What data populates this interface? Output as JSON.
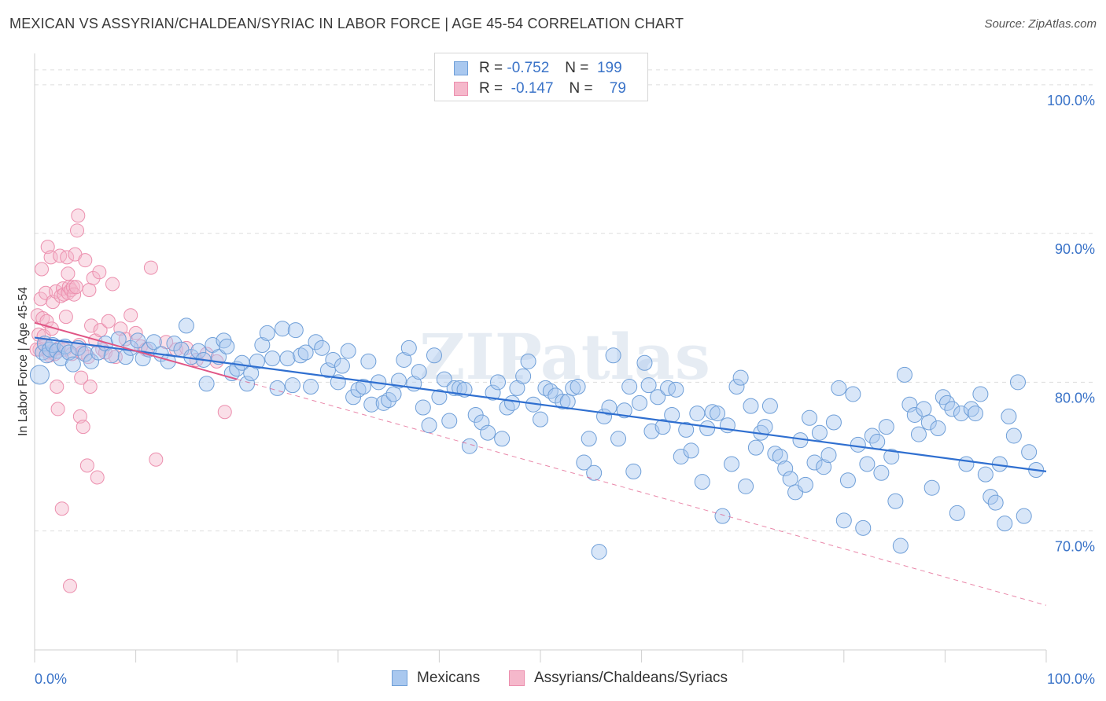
{
  "title": "MEXICAN VS ASSYRIAN/CHALDEAN/SYRIAC IN LABOR FORCE | AGE 45-54 CORRELATION CHART",
  "source": "Source: ZipAtlas.com",
  "watermark": "ZIPatlas",
  "colors": {
    "blue_fill": "#a9c8ef",
    "blue_stroke": "#6f9fd8",
    "blue_line": "#2f6fd0",
    "pink_fill": "#f5b8cb",
    "pink_stroke": "#ec8fae",
    "pink_line": "#e05585",
    "axis_text": "#3a73c8",
    "grid": "#dddddd"
  },
  "legend": {
    "row1": {
      "r_label": "R =",
      "r_value": "-0.752",
      "n_label": "N =",
      "n_value": "199"
    },
    "row2": {
      "r_label": "R =",
      "r_value": "-0.147",
      "n_label": "N =",
      "n_value": "79"
    }
  },
  "chart_data": {
    "type": "scatter",
    "title": "MEXICAN VS ASSYRIAN/CHALDEAN/SYRIAC IN LABOR FORCE | AGE 45-54 CORRELATION CHART",
    "xlabel": "",
    "ylabel": "In Labor Force | Age 45-54",
    "xlim": [
      0,
      100
    ],
    "ylim": [
      62,
      102
    ],
    "x_tick_labels": [
      "0.0%",
      "100.0%"
    ],
    "y_ticks": [
      70,
      80,
      90,
      100
    ],
    "y_tick_labels": [
      "70.0%",
      "80.0%",
      "90.0%",
      "100.0%"
    ],
    "grid": true,
    "legend_position": "top-center",
    "series": [
      {
        "name": "Mexicans",
        "color": "#6f9fd8",
        "r": -0.752,
        "n": 199,
        "trend": {
          "x": [
            0,
            100
          ],
          "y": [
            83.0,
            74.0
          ]
        },
        "points": [
          [
            0.5,
            80.5
          ],
          [
            0.8,
            82.0
          ],
          [
            1.0,
            82.6
          ],
          [
            1.2,
            81.8
          ],
          [
            1.5,
            82.2
          ],
          [
            1.8,
            82.5
          ],
          [
            2.2,
            82.1
          ],
          [
            2.6,
            81.6
          ],
          [
            3.0,
            82.4
          ],
          [
            3.4,
            82.0
          ],
          [
            3.8,
            81.2
          ],
          [
            4.3,
            82.3
          ],
          [
            5.0,
            81.9
          ],
          [
            5.6,
            81.4
          ],
          [
            6.3,
            82.0
          ],
          [
            7.0,
            82.6
          ],
          [
            7.6,
            81.8
          ],
          [
            8.3,
            82.9
          ],
          [
            9.0,
            81.7
          ],
          [
            9.5,
            82.3
          ],
          [
            10.2,
            82.8
          ],
          [
            10.7,
            81.6
          ],
          [
            11.3,
            82.2
          ],
          [
            11.8,
            82.7
          ],
          [
            12.5,
            81.9
          ],
          [
            13.2,
            81.4
          ],
          [
            13.8,
            82.6
          ],
          [
            14.5,
            82.2
          ],
          [
            15.0,
            83.8
          ],
          [
            15.5,
            81.7
          ],
          [
            16.2,
            82.1
          ],
          [
            16.7,
            81.5
          ],
          [
            17.0,
            79.9
          ],
          [
            17.6,
            82.5
          ],
          [
            18.2,
            81.7
          ],
          [
            18.7,
            82.8
          ],
          [
            19.0,
            82.4
          ],
          [
            19.5,
            80.6
          ],
          [
            20.0,
            80.9
          ],
          [
            20.5,
            81.3
          ],
          [
            21.0,
            79.9
          ],
          [
            21.4,
            80.6
          ],
          [
            22.0,
            81.4
          ],
          [
            22.5,
            82.5
          ],
          [
            23.0,
            83.3
          ],
          [
            23.5,
            81.6
          ],
          [
            24.0,
            79.6
          ],
          [
            24.5,
            83.6
          ],
          [
            25.0,
            81.6
          ],
          [
            25.5,
            79.8
          ],
          [
            25.8,
            83.5
          ],
          [
            26.3,
            81.8
          ],
          [
            26.8,
            82.0
          ],
          [
            27.3,
            79.7
          ],
          [
            27.8,
            82.7
          ],
          [
            28.4,
            82.3
          ],
          [
            29.0,
            80.8
          ],
          [
            29.5,
            81.5
          ],
          [
            30.0,
            80.0
          ],
          [
            30.4,
            81.1
          ],
          [
            31.0,
            82.1
          ],
          [
            31.5,
            79.0
          ],
          [
            32.0,
            79.5
          ],
          [
            32.5,
            79.7
          ],
          [
            33.0,
            81.4
          ],
          [
            33.3,
            78.5
          ],
          [
            34.0,
            80.0
          ],
          [
            34.5,
            78.6
          ],
          [
            35.0,
            78.8
          ],
          [
            35.5,
            79.2
          ],
          [
            36.0,
            80.1
          ],
          [
            36.5,
            81.5
          ],
          [
            37.0,
            82.3
          ],
          [
            37.5,
            79.9
          ],
          [
            38.0,
            80.7
          ],
          [
            38.4,
            78.3
          ],
          [
            39.0,
            77.1
          ],
          [
            39.5,
            81.8
          ],
          [
            40.0,
            79.0
          ],
          [
            40.5,
            80.2
          ],
          [
            41.0,
            77.4
          ],
          [
            41.5,
            79.6
          ],
          [
            42.0,
            79.6
          ],
          [
            42.5,
            79.5
          ],
          [
            43.0,
            75.7
          ],
          [
            43.6,
            77.8
          ],
          [
            44.2,
            77.3
          ],
          [
            44.8,
            76.6
          ],
          [
            45.3,
            79.3
          ],
          [
            45.8,
            80.0
          ],
          [
            46.2,
            76.2
          ],
          [
            46.7,
            78.3
          ],
          [
            47.2,
            78.6
          ],
          [
            47.7,
            79.6
          ],
          [
            48.3,
            80.4
          ],
          [
            48.8,
            81.4
          ],
          [
            49.3,
            78.5
          ],
          [
            50.0,
            77.5
          ],
          [
            50.5,
            79.6
          ],
          [
            51.0,
            79.4
          ],
          [
            51.5,
            79.1
          ],
          [
            52.2,
            78.7
          ],
          [
            52.7,
            78.7
          ],
          [
            53.2,
            79.6
          ],
          [
            53.7,
            79.7
          ],
          [
            54.3,
            74.6
          ],
          [
            54.8,
            76.2
          ],
          [
            55.3,
            73.9
          ],
          [
            55.8,
            68.6
          ],
          [
            56.3,
            77.7
          ],
          [
            56.8,
            78.3
          ],
          [
            57.2,
            81.8
          ],
          [
            57.7,
            76.2
          ],
          [
            58.3,
            78.1
          ],
          [
            58.8,
            79.7
          ],
          [
            59.2,
            74.0
          ],
          [
            59.8,
            78.6
          ],
          [
            60.3,
            81.3
          ],
          [
            60.7,
            79.8
          ],
          [
            61.0,
            76.7
          ],
          [
            61.6,
            79.0
          ],
          [
            62.1,
            77.0
          ],
          [
            62.6,
            79.6
          ],
          [
            63.0,
            77.8
          ],
          [
            63.4,
            79.5
          ],
          [
            63.9,
            75.0
          ],
          [
            64.4,
            76.8
          ],
          [
            64.9,
            75.4
          ],
          [
            65.5,
            77.9
          ],
          [
            66.0,
            73.3
          ],
          [
            66.5,
            76.9
          ],
          [
            67.0,
            78.0
          ],
          [
            67.5,
            77.9
          ],
          [
            68.0,
            71.0
          ],
          [
            68.5,
            77.1
          ],
          [
            68.9,
            74.5
          ],
          [
            69.4,
            79.7
          ],
          [
            69.8,
            80.3
          ],
          [
            70.3,
            73.0
          ],
          [
            70.8,
            78.4
          ],
          [
            71.3,
            75.6
          ],
          [
            71.8,
            76.6
          ],
          [
            72.2,
            77.0
          ],
          [
            72.7,
            78.4
          ],
          [
            73.2,
            75.2
          ],
          [
            73.7,
            75.0
          ],
          [
            74.2,
            74.2
          ],
          [
            74.7,
            73.5
          ],
          [
            75.2,
            72.6
          ],
          [
            75.7,
            76.1
          ],
          [
            76.2,
            73.1
          ],
          [
            76.6,
            77.6
          ],
          [
            77.1,
            74.6
          ],
          [
            77.6,
            76.6
          ],
          [
            78.0,
            74.3
          ],
          [
            78.5,
            75.1
          ],
          [
            79.0,
            77.3
          ],
          [
            79.5,
            79.6
          ],
          [
            80.0,
            70.7
          ],
          [
            80.4,
            73.4
          ],
          [
            80.9,
            79.2
          ],
          [
            81.4,
            75.8
          ],
          [
            81.9,
            70.2
          ],
          [
            82.3,
            74.5
          ],
          [
            82.8,
            76.4
          ],
          [
            83.3,
            76.0
          ],
          [
            83.7,
            73.9
          ],
          [
            84.2,
            77.0
          ],
          [
            84.7,
            75.0
          ],
          [
            85.1,
            72.0
          ],
          [
            85.6,
            69.0
          ],
          [
            86.0,
            80.5
          ],
          [
            86.5,
            78.5
          ],
          [
            87.0,
            77.8
          ],
          [
            87.4,
            76.5
          ],
          [
            87.9,
            78.2
          ],
          [
            88.4,
            77.3
          ],
          [
            88.7,
            72.9
          ],
          [
            89.3,
            76.9
          ],
          [
            89.8,
            79.0
          ],
          [
            90.2,
            78.6
          ],
          [
            90.7,
            78.2
          ],
          [
            91.2,
            71.2
          ],
          [
            91.6,
            77.9
          ],
          [
            92.1,
            74.5
          ],
          [
            92.6,
            78.2
          ],
          [
            93.0,
            77.9
          ],
          [
            93.5,
            79.2
          ],
          [
            94.0,
            73.8
          ],
          [
            94.5,
            72.3
          ],
          [
            95.0,
            71.9
          ],
          [
            95.4,
            74.5
          ],
          [
            95.9,
            70.5
          ],
          [
            96.3,
            77.7
          ],
          [
            96.8,
            76.4
          ],
          [
            97.2,
            80.0
          ],
          [
            97.8,
            71.0
          ],
          [
            98.3,
            75.3
          ],
          [
            99.0,
            74.1
          ]
        ]
      },
      {
        "name": "Assyrians/Chaldeans/Syriacs",
        "color": "#ec8fae",
        "r": -0.147,
        "n": 79,
        "trend": {
          "x": [
            0,
            100
          ],
          "y": [
            84.0,
            65.0
          ]
        },
        "trend_solid_until": 20,
        "points": [
          [
            0.3,
            84.5
          ],
          [
            0.4,
            83.2
          ],
          [
            0.5,
            82.2
          ],
          [
            0.6,
            85.6
          ],
          [
            0.7,
            87.6
          ],
          [
            0.8,
            84.3
          ],
          [
            0.9,
            83.1
          ],
          [
            1.0,
            82.5
          ],
          [
            1.1,
            86.0
          ],
          [
            1.2,
            84.1
          ],
          [
            1.3,
            89.1
          ],
          [
            1.4,
            82.0
          ],
          [
            1.5,
            81.8
          ],
          [
            1.6,
            88.4
          ],
          [
            1.7,
            83.6
          ],
          [
            1.8,
            85.4
          ],
          [
            1.9,
            82.2
          ],
          [
            2.0,
            81.9
          ],
          [
            2.1,
            86.1
          ],
          [
            2.2,
            79.7
          ],
          [
            2.3,
            78.2
          ],
          [
            2.4,
            82.3
          ],
          [
            2.5,
            88.5
          ],
          [
            2.6,
            85.8
          ],
          [
            2.7,
            71.5
          ],
          [
            2.8,
            86.3
          ],
          [
            2.9,
            85.9
          ],
          [
            3.0,
            82.2
          ],
          [
            3.1,
            84.4
          ],
          [
            3.2,
            88.4
          ],
          [
            3.3,
            86.0
          ],
          [
            3.4,
            86.4
          ],
          [
            3.5,
            66.3
          ],
          [
            3.6,
            86.2
          ],
          [
            3.7,
            81.9
          ],
          [
            3.8,
            86.4
          ],
          [
            3.9,
            85.9
          ],
          [
            4.0,
            88.6
          ],
          [
            4.1,
            86.4
          ],
          [
            4.2,
            90.2
          ],
          [
            4.3,
            91.2
          ],
          [
            4.4,
            82.5
          ],
          [
            4.5,
            77.7
          ],
          [
            4.6,
            80.3
          ],
          [
            4.7,
            82.0
          ],
          [
            4.8,
            77.0
          ],
          [
            5.0,
            88.2
          ],
          [
            5.2,
            74.4
          ],
          [
            5.3,
            81.7
          ],
          [
            5.4,
            86.2
          ],
          [
            5.5,
            79.7
          ],
          [
            5.6,
            83.8
          ],
          [
            5.8,
            87.0
          ],
          [
            6.0,
            82.8
          ],
          [
            6.2,
            73.6
          ],
          [
            6.4,
            87.4
          ],
          [
            6.5,
            83.5
          ],
          [
            6.7,
            82.2
          ],
          [
            7.0,
            82.0
          ],
          [
            7.3,
            84.1
          ],
          [
            7.7,
            86.6
          ],
          [
            8.0,
            81.7
          ],
          [
            8.5,
            83.6
          ],
          [
            9.0,
            82.9
          ],
          [
            9.5,
            84.5
          ],
          [
            10.0,
            83.3
          ],
          [
            10.5,
            82.4
          ],
          [
            11.0,
            82.2
          ],
          [
            11.5,
            87.7
          ],
          [
            12.0,
            74.8
          ],
          [
            13.0,
            82.7
          ],
          [
            14.0,
            82.2
          ],
          [
            15.0,
            82.3
          ],
          [
            16.0,
            81.5
          ],
          [
            17.0,
            81.9
          ],
          [
            18.0,
            81.4
          ],
          [
            18.8,
            78.0
          ],
          [
            0.2,
            82.2
          ],
          [
            3.3,
            87.3
          ]
        ]
      }
    ]
  }
}
